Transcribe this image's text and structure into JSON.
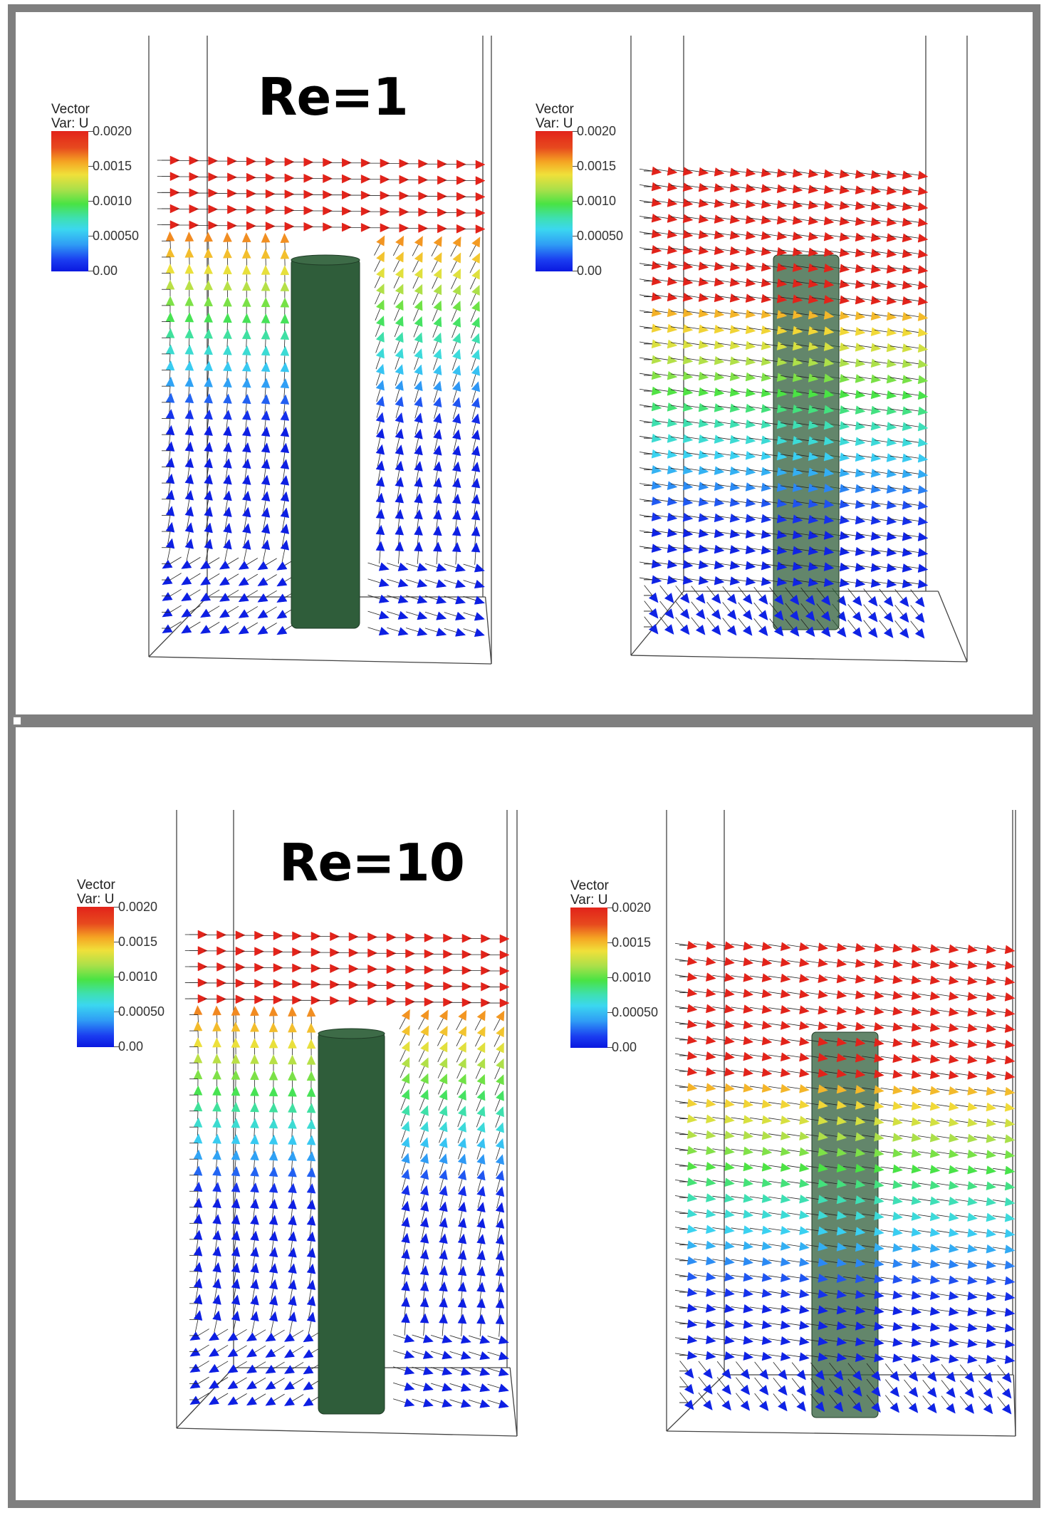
{
  "panels": [
    {
      "title": "Re=1",
      "legends": [
        {
          "title_line1": "Vector",
          "title_line2": "Var: U",
          "labels": [
            "0.0020",
            "0.0015",
            "0.0010",
            "0.00050",
            "0.00"
          ]
        },
        {
          "title_line1": "Vector",
          "title_line2": "Var: U",
          "labels": [
            "0.0020",
            "0.0015",
            "0.0010",
            "0.00050",
            "0.00"
          ]
        }
      ]
    },
    {
      "title": "Re=10",
      "legends": [
        {
          "title_line1": "Vector",
          "title_line2": "Var: U",
          "labels": [
            "0.0020",
            "0.0015",
            "0.0010",
            "0.00050",
            "0.00"
          ]
        },
        {
          "title_line1": "Vector",
          "title_line2": "Var: U",
          "labels": [
            "0.0020",
            "0.0015",
            "0.0010",
            "0.00050",
            "0.00"
          ]
        }
      ]
    }
  ],
  "colormap": {
    "range": [
      0,
      0.002
    ],
    "stops": [
      "#0a18e0",
      "#1a3cf0",
      "#2f9cf5",
      "#3bd7f0",
      "#3ee0b0",
      "#49e344",
      "#a8e04a",
      "#f0e03a",
      "#f5a623",
      "#e74a1e",
      "#e2231a"
    ]
  },
  "cylinder_color": "#2f5d3a"
}
